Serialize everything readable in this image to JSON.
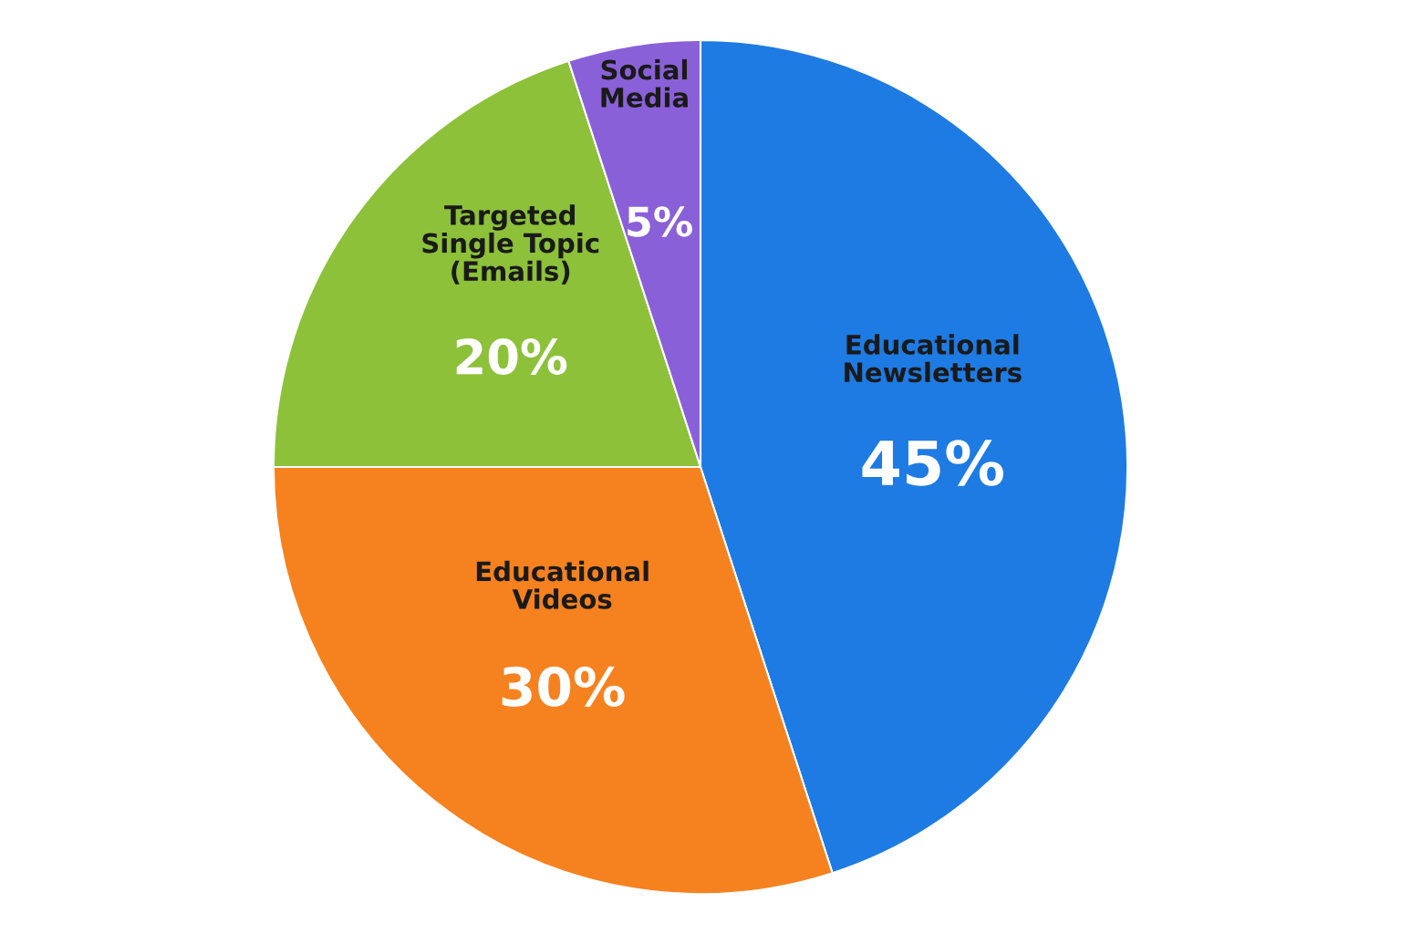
{
  "chart_data": {
    "type": "pie",
    "categories": [
      "Educational\nNewsletters",
      "Educational\nVideos",
      "Targeted\nSingle Topic\n(Emails)",
      "Social\nMedia"
    ],
    "values": [
      45,
      30,
      20,
      5
    ],
    "value_labels": [
      "45%",
      "30%",
      "20%",
      "5%"
    ],
    "colors": [
      "#1e7be3",
      "#f5821f",
      "#8dc13a",
      "#8a60d8"
    ]
  }
}
